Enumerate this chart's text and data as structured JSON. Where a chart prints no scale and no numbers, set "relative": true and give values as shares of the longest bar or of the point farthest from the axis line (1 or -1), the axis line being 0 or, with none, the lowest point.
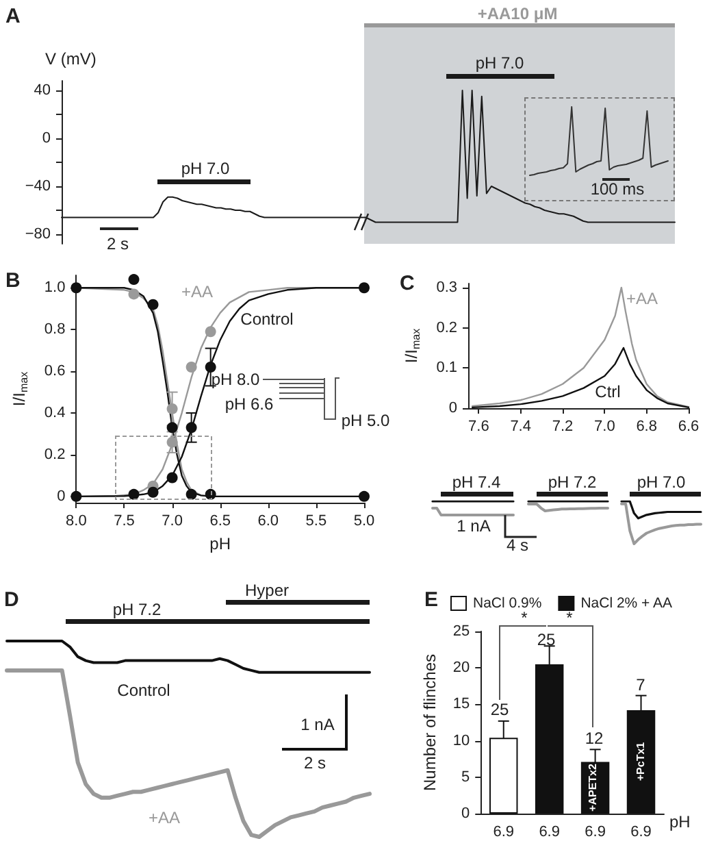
{
  "chart_data": [
    {
      "type": "line",
      "title": "A",
      "ylabel": "V (mV)",
      "categories": [
        null,
        null,
        null,
        null,
        null,
        null,
        null,
        null,
        null,
        null,
        null,
        null,
        null,
        null,
        null,
        null,
        null,
        null,
        null,
        null,
        null,
        null,
        null,
        null,
        null,
        null,
        null,
        null,
        null,
        null,
        null,
        null,
        null,
        null,
        null,
        null,
        null,
        null,
        null,
        null,
        null,
        null,
        null,
        null,
        null,
        null,
        null,
        null,
        null,
        null,
        null,
        null,
        null,
        null,
        null,
        null,
        null,
        null,
        null,
        null,
        null,
        null,
        null,
        null,
        null,
        null,
        null,
        null,
        null,
        null,
        null,
        null,
        null,
        null,
        null,
        null,
        null,
        null,
        null,
        null,
        null,
        null,
        null,
        null,
        null,
        null,
        null,
        null,
        null,
        null,
        null,
        null,
        null,
        null,
        null,
        null,
        null,
        null,
        null,
        null,
        null,
        null,
        null,
        null,
        null,
        null,
        null,
        null,
        null,
        null,
        null,
        null,
        null,
        null,
        null,
        null,
        null,
        null,
        null,
        null,
        null,
        null,
        null,
        null,
        null,
        null,
        null,
        null
      ],
      "values": [
        -66,
        -66,
        -66,
        -66,
        -66,
        -66,
        -66,
        -66,
        -66,
        -66,
        -66,
        -66,
        -66,
        -66,
        -66,
        -66,
        -66,
        -66,
        -66,
        -66,
        -62,
        -53,
        -49,
        -49,
        -50,
        -52,
        -53,
        -54,
        -55,
        -55,
        -56,
        -57,
        -58,
        -58,
        -59,
        -59,
        -60,
        -60,
        -61,
        -61,
        -63,
        -65,
        -66,
        -66,
        -66,
        -66,
        -66,
        -66,
        -66,
        -66,
        -66,
        -66,
        -66,
        -66,
        -66,
        -66,
        -66,
        -66,
        -66,
        -66,
        -66,
        -66,
        -66,
        -66,
        -68,
        -70,
        -70,
        -70,
        -70,
        -70,
        -70,
        -70,
        -70,
        -70,
        -70,
        -70,
        -70,
        -70,
        -70,
        -70,
        -70,
        -70,
        -70,
        40,
        -50,
        40,
        -48,
        35,
        -46,
        -40,
        -42,
        -44,
        -46,
        -48,
        -50,
        -52,
        -54,
        -55,
        -57,
        -58,
        -60,
        -61,
        -62,
        -63,
        -63,
        -64,
        -65,
        -67,
        -69,
        -70,
        -70,
        -70,
        -70,
        -70,
        -70,
        -70,
        -70,
        -70,
        -70,
        -70,
        -70,
        -70,
        -70,
        -70,
        -70,
        -70,
        -70,
        -70
      ],
      "color": "#1a1a1a",
      "ylim": [
        -88,
        48
      ],
      "yticks": [
        40,
        {
          "value": 20,
          "label": null
        },
        0,
        {
          "value": -20,
          "label": null
        },
        {
          "value": -40,
          "label": "−40"
        },
        {
          "value": -60,
          "label": null
        },
        {
          "value": -80,
          "label": "−80"
        }
      ],
      "tick_labels": "y",
      "grid": false,
      "annotations": [
        "+AA10 μM",
        "pH 7.0",
        "pH 7.0",
        "2 s"
      ]
    },
    {
      "type": "line",
      "relative": true,
      "categories": [
        null,
        null,
        null,
        null,
        null,
        null,
        null,
        null,
        null,
        null,
        null,
        null,
        null,
        null,
        null,
        null,
        null,
        null,
        null,
        null,
        null,
        null,
        null,
        null,
        null,
        null,
        null,
        null,
        null,
        null,
        null,
        null,
        null,
        null
      ],
      "values": [
        0,
        0.01,
        0.03,
        0.04,
        0.05,
        0.07,
        0.08,
        0.1,
        0.11,
        0.17,
        1.0,
        0.05,
        0.09,
        0.12,
        0.15,
        0.17,
        0.2,
        0.21,
        0.98,
        0.08,
        0.12,
        0.14,
        0.15,
        0.16,
        0.18,
        0.2,
        0.22,
        0.25,
        0.94,
        0.12,
        0.15,
        0.17,
        0.19,
        0.21
      ],
      "color": "#333333",
      "tick_labels": false,
      "annotations": [
        "100 ms"
      ]
    },
    {
      "type": "line",
      "title": "B",
      "xlabel": "pH",
      "ylabel": "I/I$_{max}$",
      "xlim": [
        8.0,
        5.0
      ],
      "xticks": [
        {
          "value": 8,
          "label": "8.0"
        },
        7.5,
        {
          "value": 7,
          "label": "7.0"
        },
        6.5,
        {
          "value": 6,
          "label": "6.0"
        },
        5.5,
        {
          "value": 5,
          "label": "5.0"
        }
      ],
      "ylim": [
        -0.03,
        1.06
      ],
      "yticks": [
        0,
        0.2,
        0.4,
        0.6,
        0.8,
        {
          "value": 1,
          "label": "1.0"
        }
      ],
      "marker": "circle",
      "grid": false,
      "series": [
        {
          "marker": "none",
          "color": "#999999",
          "x": [
            8.0,
            7.6,
            7.4,
            7.3,
            7.2,
            7.1,
            7.0,
            6.9,
            6.8,
            6.7,
            6.6,
            6.5,
            6.4,
            6.2,
            6.0,
            5.8,
            5.5,
            5.0
          ],
          "values": [
            0,
            0.002,
            0.01,
            0.03,
            0.06,
            0.13,
            0.25,
            0.4,
            0.57,
            0.71,
            0.81,
            0.88,
            0.93,
            0.98,
            0.99,
            1.0,
            1.0,
            1.0
          ]
        },
        {
          "marker": "none",
          "color": "#999999",
          "x": [
            8.0,
            7.5,
            7.4,
            7.3,
            7.2,
            7.15,
            7.1,
            7.05,
            7.0,
            6.95,
            6.9,
            6.85,
            6.8,
            6.7,
            6.6,
            5.0
          ],
          "values": [
            1.0,
            0.99,
            0.98,
            0.95,
            0.9,
            0.82,
            0.7,
            0.55,
            0.4,
            0.25,
            0.13,
            0.07,
            0.03,
            0.005,
            0,
            0
          ]
        },
        {
          "marker": "none",
          "color": "#111111",
          "x": [
            8.0,
            7.5,
            7.4,
            7.3,
            7.2,
            7.1,
            7.0,
            6.9,
            6.8,
            6.7,
            6.6,
            6.5,
            6.4,
            6.3,
            6.2,
            6.0,
            5.8,
            5.5,
            5.0
          ],
          "values": [
            0,
            0.002,
            0.005,
            0.01,
            0.02,
            0.05,
            0.1,
            0.19,
            0.32,
            0.48,
            0.63,
            0.75,
            0.84,
            0.9,
            0.94,
            0.97,
            0.99,
            1.0,
            1.0
          ]
        },
        {
          "marker": "none",
          "color": "#111111",
          "x": [
            8.0,
            7.5,
            7.4,
            7.3,
            7.2,
            7.15,
            7.1,
            7.05,
            7.0,
            6.95,
            6.9,
            6.85,
            6.8,
            6.7,
            6.6,
            5.0
          ],
          "values": [
            1.0,
            1.0,
            0.99,
            0.96,
            0.88,
            0.79,
            0.65,
            0.5,
            0.33,
            0.2,
            0.1,
            0.05,
            0.02,
            0.005,
            0,
            0
          ]
        },
        {
          "type": "scatter",
          "color": "#9a9a9a",
          "x": [
            7.2,
            7.0,
            6.8,
            6.6
          ],
          "values": [
            0.05,
            0.26,
            0.62,
            0.79
          ],
          "errors": [
            null,
            0.05,
            null,
            null
          ]
        },
        {
          "type": "scatter",
          "color": "#9a9a9a",
          "x": [
            7.4,
            7.0
          ],
          "values": [
            0.97,
            0.42
          ],
          "errors": [
            null,
            0.08
          ]
        },
        {
          "type": "scatter",
          "color": "#111111",
          "x": [
            8.0,
            7.4,
            7.2,
            7.0,
            6.8,
            6.6,
            5.0
          ],
          "values": [
            0,
            0.01,
            0.02,
            0.09,
            0.33,
            0.62,
            1.0
          ],
          "errors": [
            null,
            null,
            null,
            null,
            0.07,
            0.09,
            null
          ]
        },
        {
          "type": "scatter",
          "color": "#111111",
          "x": [
            8.0,
            7.4,
            7.2,
            7.0,
            6.8,
            6.6,
            5.0
          ],
          "values": [
            1.0,
            1.04,
            0.92,
            0.33,
            0.01,
            0.01,
            0
          ]
        }
      ],
      "annotations": [
        "+AA",
        "Control",
        "pH 8.0",
        "pH 6.6",
        "pH 5.0"
      ]
    },
    {
      "type": "line",
      "title": "C",
      "ylabel": "I/I$_{max}$",
      "xlim": [
        7.65,
        6.6
      ],
      "xticks": [
        7.6,
        7.4,
        7.2,
        {
          "value": 7,
          "label": "7.0"
        },
        6.8,
        6.6
      ],
      "ylim": [
        0,
        0.31
      ],
      "yticks": [
        0,
        0.1,
        0.2,
        0.3
      ],
      "grid": false,
      "series": [
        {
          "color": "#999999",
          "x": [
            7.63,
            7.5,
            7.4,
            7.3,
            7.2,
            7.1,
            7.0,
            6.95,
            6.92,
            6.9,
            6.87,
            6.85,
            6.8,
            6.75,
            6.7,
            6.6
          ],
          "values": [
            0.005,
            0.012,
            0.02,
            0.035,
            0.06,
            0.1,
            0.17,
            0.23,
            0.3,
            0.24,
            0.16,
            0.12,
            0.06,
            0.03,
            0.015,
            0.003
          ]
        },
        {
          "color": "#111111",
          "x": [
            7.63,
            7.5,
            7.4,
            7.3,
            7.2,
            7.1,
            7.0,
            6.95,
            6.91,
            6.88,
            6.85,
            6.8,
            6.75,
            6.7,
            6.6
          ],
          "values": [
            0.002,
            0.005,
            0.01,
            0.018,
            0.03,
            0.05,
            0.08,
            0.11,
            0.15,
            0.11,
            0.08,
            0.045,
            0.025,
            0.012,
            0.002
          ]
        }
      ],
      "annotations": [
        "+AA",
        "Ctrl"
      ]
    },
    {
      "type": "line",
      "relative": true,
      "tick_labels": false,
      "categories": [
        null,
        null,
        null,
        null,
        null,
        null,
        null,
        null,
        null,
        null,
        null,
        null,
        null,
        null,
        null,
        null,
        null,
        null,
        null,
        null
      ],
      "series": [
        {
          "color": "#111111",
          "values": [
            1,
            1,
            1,
            1,
            1,
            1,
            1,
            1,
            1,
            1,
            1,
            1,
            1,
            1,
            1,
            1,
            1,
            1,
            1,
            1
          ]
        },
        {
          "color": "#999999",
          "values": [
            0.5,
            0.5,
            0,
            0,
            0,
            0,
            0,
            0,
            0,
            0,
            0,
            0,
            0,
            0,
            0,
            0,
            0,
            0,
            0,
            0
          ]
        }
      ],
      "annotations": [
        "pH 7.4",
        "1 nA",
        "4 s"
      ]
    },
    {
      "type": "line",
      "relative": true,
      "tick_labels": false,
      "categories": [
        null,
        null,
        null,
        null,
        null,
        null,
        null,
        null,
        null,
        null,
        null,
        null,
        null,
        null,
        null,
        null,
        null,
        null,
        null,
        null
      ],
      "series": [
        {
          "color": "#111111",
          "values": [
            1,
            1,
            1,
            1,
            1,
            1,
            1,
            1,
            1,
            1,
            1,
            1,
            1,
            1,
            1,
            1,
            1,
            1,
            1,
            1
          ]
        },
        {
          "color": "#999999",
          "values": [
            0.71,
            0.71,
            0.71,
            0.3,
            0,
            0.05,
            0.1,
            0.15,
            0.19,
            0.2,
            0.21,
            0.22,
            0.23,
            0.24,
            0.25,
            0.26,
            0.27,
            0.28,
            0.29,
            0.29
          ]
        }
      ],
      "annotations": [
        "pH 7.2"
      ]
    },
    {
      "type": "line",
      "relative": true,
      "tick_labels": false,
      "categories": [
        null,
        null,
        null,
        null,
        null,
        null,
        null,
        null,
        null,
        null,
        null,
        null,
        null,
        null,
        null,
        null,
        null,
        null,
        null,
        null
      ],
      "series": [
        {
          "color": "#111111",
          "values": [
            1,
            1,
            1,
            0.72,
            0.6,
            0.64,
            0.68,
            0.7,
            0.72,
            0.73,
            0.74,
            0.75,
            0.75,
            0.75,
            0.75,
            0.75,
            0.75,
            0.75,
            0.75,
            0.75
          ]
        },
        {
          "color": "#999999",
          "values": [
            0.94,
            0.94,
            0.31,
            0,
            0.1,
            0.18,
            0.25,
            0.29,
            0.33,
            0.36,
            0.38,
            0.4,
            0.42,
            0.43,
            0.44,
            0.44,
            0.45,
            0.45,
            0.46,
            0.46
          ]
        }
      ],
      "annotations": [
        "pH 7.0"
      ]
    },
    {
      "type": "line",
      "title": "D",
      "relative": true,
      "tick_labels": false,
      "categories": [
        null,
        null,
        null,
        null,
        null,
        null,
        null,
        null,
        null,
        null,
        null,
        null,
        null,
        null,
        null,
        null,
        null,
        null,
        null,
        null,
        null,
        null,
        null,
        null,
        null,
        null,
        null,
        null,
        null,
        null,
        null,
        null,
        null,
        null,
        null,
        null,
        null,
        null,
        null,
        null,
        null,
        null,
        null,
        null,
        null,
        null,
        null
      ],
      "series": [
        {
          "color": "#111111",
          "values": [
            1,
            1,
            1,
            1,
            1,
            1,
            1,
            1,
            0.97,
            0.92,
            0.9,
            0.89,
            0.89,
            0.89,
            0.89,
            0.9,
            0.9,
            0.9,
            0.9,
            0.9,
            0.9,
            0.9,
            0.9,
            0.9,
            0.9,
            0.9,
            0.9,
            0.91,
            0.9,
            0.88,
            0.86,
            0.85,
            0.84,
            0.84,
            0.84,
            0.84,
            0.84,
            0.84,
            0.84,
            0.84,
            0.84,
            0.84,
            0.84,
            0.84,
            0.84,
            0.84,
            0.84
          ]
        },
        {
          "color": "#999999",
          "values": [
            0.85,
            0.85,
            0.85,
            0.85,
            0.85,
            0.85,
            0.85,
            0.85,
            0.62,
            0.38,
            0.27,
            0.22,
            0.2,
            0.2,
            0.21,
            0.22,
            0.23,
            0.23,
            0.24,
            0.25,
            0.26,
            0.27,
            0.28,
            0.29,
            0.3,
            0.31,
            0.32,
            0.33,
            0.34,
            0.2,
            0.08,
            0.01,
            0,
            0.03,
            0.06,
            0.08,
            0.1,
            0.11,
            0.12,
            0.13,
            0.15,
            0.16,
            0.17,
            0.18,
            0.2,
            0.21,
            0.22
          ]
        }
      ],
      "annotations": [
        "Hyper",
        "pH 7.2",
        "Control",
        "+AA",
        "1 nA",
        "2 s"
      ]
    },
    {
      "type": "bar",
      "title": "E",
      "xlabel": "pH",
      "ylabel": "Number of flinches",
      "categories": [
        "6.9",
        "6.9",
        "6.9",
        "6.9"
      ],
      "ylim": [
        0,
        25
      ],
      "yticks": [
        0,
        5,
        10,
        15,
        20,
        25
      ],
      "legend": "top",
      "grid": false,
      "series": [
        {
          "name": "NaCl 0.9%",
          "color": "#ffffff",
          "values": [
            10.4,
            null,
            null,
            null
          ],
          "errors": [
            2.3,
            null,
            null,
            null
          ]
        },
        {
          "name": "NaCl 2% + AA",
          "color": "#111111",
          "values": [
            null,
            20.5,
            7.1,
            14.2
          ],
          "errors": [
            null,
            2.5,
            1.7,
            2.0
          ]
        }
      ],
      "annotations": [
        "*",
        "*",
        "+APETx2",
        "+PcTx1",
        "25",
        "25",
        "12",
        "7"
      ]
    }
  ]
}
